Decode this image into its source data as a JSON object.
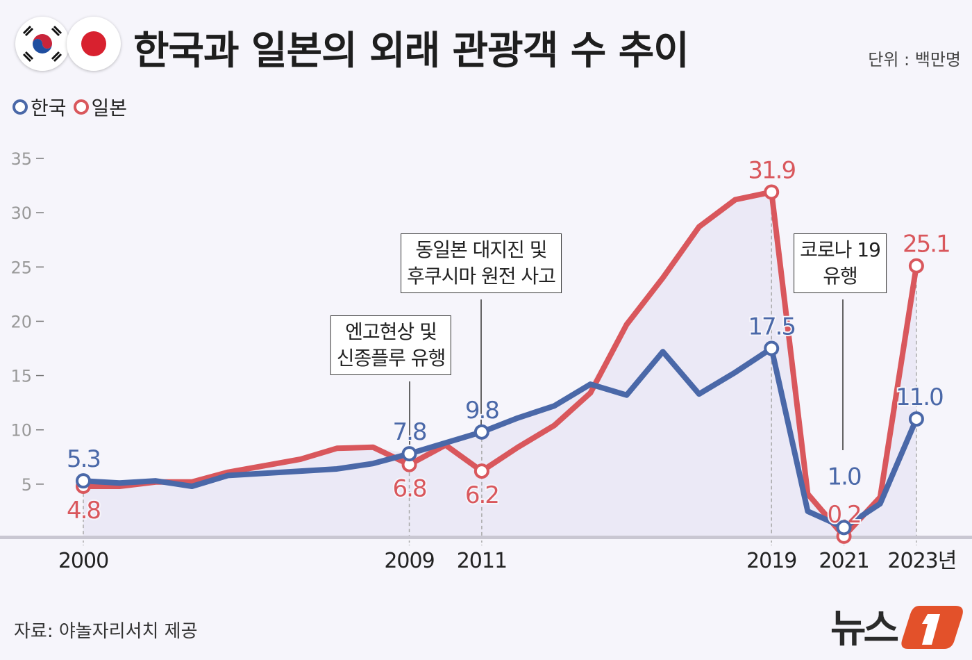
{
  "header": {
    "title": "한국과 일본의 외래 관광객 수 추이",
    "unit": "단위 : 백만명",
    "flags": [
      "korea-flag",
      "japan-flag"
    ]
  },
  "legend": [
    {
      "label": "한국",
      "color": "#4a68a8"
    },
    {
      "label": "일본",
      "color": "#d9575c"
    }
  ],
  "annotations": [
    {
      "line1": "엔고현상 및",
      "line2": "신종플루 유행",
      "year": 2009
    },
    {
      "line1": "동일본 대지진 및",
      "line2": "후쿠시마 원전 사고",
      "year": 2011
    },
    {
      "line1": "코로나 19",
      "line2": "유행",
      "year": 2021
    }
  ],
  "source": "자료: 야놀자리서치 제공",
  "logo": "뉴스1",
  "chart_data": {
    "type": "line",
    "x": [
      2000,
      2001,
      2002,
      2003,
      2004,
      2005,
      2006,
      2007,
      2008,
      2009,
      2010,
      2011,
      2012,
      2013,
      2014,
      2015,
      2016,
      2017,
      2018,
      2019,
      2020,
      2021,
      2022,
      2023
    ],
    "x_tick_labels": [
      {
        "year": 2000,
        "label": "2000"
      },
      {
        "year": 2009,
        "label": "2009"
      },
      {
        "year": 2011,
        "label": "2011"
      },
      {
        "year": 2019,
        "label": "2019"
      },
      {
        "year": 2021,
        "label": "2021"
      },
      {
        "year": 2023,
        "label": "2023년"
      }
    ],
    "ylim": [
      0,
      35
    ],
    "y_ticks": [
      5,
      10,
      15,
      20,
      25,
      30,
      35
    ],
    "series": [
      {
        "name": "한국",
        "color": "#4a68a8",
        "values": [
          5.3,
          5.1,
          5.3,
          4.8,
          5.8,
          6.0,
          6.2,
          6.4,
          6.9,
          7.8,
          8.8,
          9.8,
          11.1,
          12.2,
          14.2,
          13.2,
          17.2,
          13.3,
          15.3,
          17.5,
          2.5,
          1.0,
          3.2,
          11.0
        ],
        "labels": [
          {
            "year": 2000,
            "text": "5.3",
            "pos": "above"
          },
          {
            "year": 2009,
            "text": "7.8",
            "pos": "above"
          },
          {
            "year": 2011,
            "text": "9.8",
            "pos": "above"
          },
          {
            "year": 2019,
            "text": "17.5",
            "pos": "above"
          },
          {
            "year": 2021,
            "text": "1.0",
            "pos": "above"
          },
          {
            "year": 2023,
            "text": "11.0",
            "pos": "above"
          }
        ]
      },
      {
        "name": "일본",
        "color": "#d9575c",
        "values": [
          4.8,
          4.8,
          5.2,
          5.2,
          6.1,
          6.7,
          7.3,
          8.3,
          8.4,
          6.8,
          8.6,
          6.2,
          8.4,
          10.4,
          13.4,
          19.7,
          24.0,
          28.7,
          31.2,
          31.9,
          4.1,
          0.2,
          3.8,
          25.1
        ],
        "labels": [
          {
            "year": 2000,
            "text": "4.8",
            "pos": "below"
          },
          {
            "year": 2009,
            "text": "6.8",
            "pos": "below"
          },
          {
            "year": 2011,
            "text": "6.2",
            "pos": "below"
          },
          {
            "year": 2019,
            "text": "31.9",
            "pos": "above"
          },
          {
            "year": 2021,
            "text": "0.2",
            "pos": "above"
          },
          {
            "year": 2023,
            "text": "25.1",
            "pos": "above"
          }
        ]
      }
    ]
  }
}
